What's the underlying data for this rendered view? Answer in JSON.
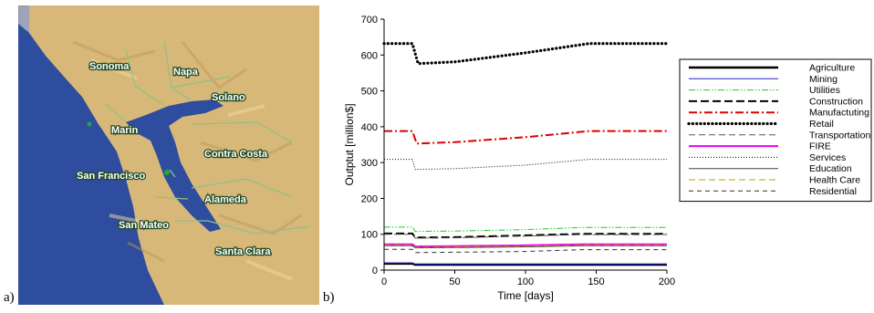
{
  "panels": {
    "a_label": "a)",
    "b_label": "b)"
  },
  "map": {
    "regions": [
      "Sonoma",
      "Napa",
      "Solano",
      "Marin",
      "Contra Costa",
      "San Francisco",
      "Alameda",
      "San Mateo",
      "Santa Clara"
    ],
    "colors": {
      "land": "#d8b878",
      "water": "#2e4d9e",
      "border": "#8fc08a"
    }
  },
  "chart_data": {
    "type": "line",
    "xlabel": "Time [days]",
    "ylabel": "Outptut [million$]",
    "xlim": [
      0,
      200
    ],
    "ylim": [
      0,
      700
    ],
    "xticks": [
      0,
      50,
      100,
      150,
      200
    ],
    "yticks": [
      0,
      100,
      200,
      300,
      400,
      500,
      600,
      700
    ],
    "grid": false,
    "legend_position": "right",
    "series": [
      {
        "name": "Agriculture",
        "color": "#000000",
        "dash": "solid",
        "width": 2.4,
        "points": [
          [
            0,
            18
          ],
          [
            20,
            18
          ],
          [
            22,
            15
          ],
          [
            200,
            15
          ]
        ]
      },
      {
        "name": "Mining",
        "color": "#2222cc",
        "dash": "solid",
        "width": 1,
        "points": [
          [
            0,
            20
          ],
          [
            20,
            20
          ],
          [
            22,
            17
          ],
          [
            200,
            17
          ]
        ]
      },
      {
        "name": "Utilities",
        "color": "#22cc22",
        "dash": "dashdotdot",
        "width": 1,
        "points": [
          [
            0,
            120
          ],
          [
            20,
            120
          ],
          [
            22,
            108
          ],
          [
            50,
            109
          ],
          [
            100,
            113
          ],
          [
            140,
            119
          ],
          [
            200,
            119
          ]
        ]
      },
      {
        "name": "Construction",
        "color": "#000000",
        "dash": "longdash",
        "width": 2,
        "points": [
          [
            0,
            102
          ],
          [
            20,
            102
          ],
          [
            22,
            91
          ],
          [
            50,
            92
          ],
          [
            100,
            97
          ],
          [
            140,
            101
          ],
          [
            200,
            101
          ]
        ]
      },
      {
        "name": "Manufactuting",
        "color": "#dd0000",
        "dash": "dashdot",
        "width": 2,
        "points": [
          [
            0,
            388
          ],
          [
            20,
            388
          ],
          [
            23,
            353
          ],
          [
            50,
            357
          ],
          [
            100,
            371
          ],
          [
            145,
            388
          ],
          [
            200,
            388
          ]
        ]
      },
      {
        "name": "Retail",
        "color": "#000000",
        "dash": "dot",
        "width": 3.2,
        "points": [
          [
            0,
            632
          ],
          [
            20,
            632
          ],
          [
            24,
            576
          ],
          [
            50,
            581
          ],
          [
            100,
            606
          ],
          [
            145,
            632
          ],
          [
            200,
            632
          ]
        ]
      },
      {
        "name": "Transportation",
        "color": "#555555",
        "dash": "dash",
        "width": 1,
        "points": [
          [
            0,
            100
          ],
          [
            20,
            100
          ],
          [
            22,
            89
          ],
          [
            50,
            90
          ],
          [
            100,
            95
          ],
          [
            140,
            99
          ],
          [
            200,
            99
          ]
        ]
      },
      {
        "name": "FIRE",
        "color": "#ee00ee",
        "dash": "solid",
        "width": 2,
        "points": [
          [
            0,
            72
          ],
          [
            20,
            72
          ],
          [
            22,
            66
          ],
          [
            50,
            67
          ],
          [
            100,
            69
          ],
          [
            140,
            72
          ],
          [
            200,
            72
          ]
        ]
      },
      {
        "name": "Services",
        "color": "#000000",
        "dash": "finedot",
        "width": 1,
        "points": [
          [
            0,
            309
          ],
          [
            20,
            309
          ],
          [
            22,
            281
          ],
          [
            50,
            283
          ],
          [
            100,
            293
          ],
          [
            145,
            309
          ],
          [
            200,
            309
          ]
        ]
      },
      {
        "name": "Education",
        "color": "#444444",
        "dash": "solid",
        "width": 1,
        "points": [
          [
            0,
            68
          ],
          [
            20,
            68
          ],
          [
            22,
            62
          ],
          [
            50,
            63
          ],
          [
            100,
            65
          ],
          [
            140,
            68
          ],
          [
            200,
            68
          ]
        ]
      },
      {
        "name": "Health Care",
        "color": "#b8a000",
        "dash": "dash",
        "width": 1,
        "points": [
          [
            0,
            70
          ],
          [
            20,
            70
          ],
          [
            22,
            64
          ],
          [
            50,
            65
          ],
          [
            100,
            67
          ],
          [
            140,
            70
          ],
          [
            200,
            70
          ]
        ]
      },
      {
        "name": "Residential",
        "color": "#333333",
        "dash": "mediumdash",
        "width": 1,
        "points": [
          [
            0,
            58
          ],
          [
            20,
            58
          ],
          [
            22,
            49
          ],
          [
            50,
            50
          ],
          [
            100,
            52
          ],
          [
            140,
            57
          ],
          [
            200,
            57
          ]
        ]
      }
    ]
  }
}
